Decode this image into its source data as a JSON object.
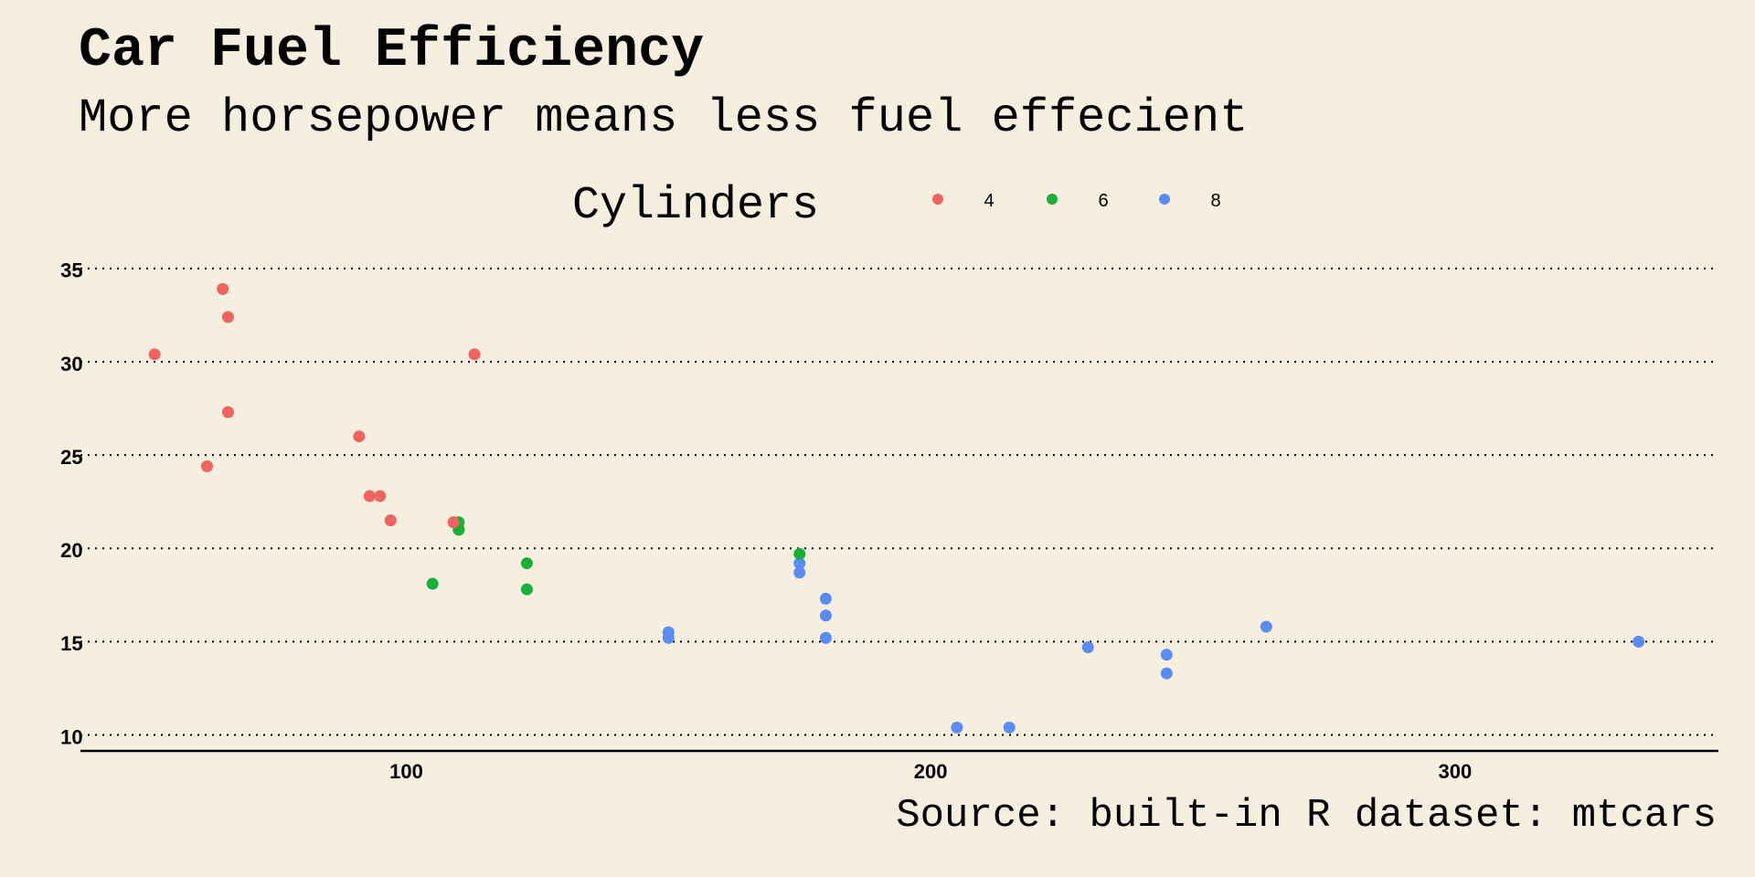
{
  "chart_data": {
    "type": "scatter",
    "title": "Car Fuel Efficiency",
    "subtitle": "More horsepower means less fuel effecient",
    "caption": "Source: built-in R dataset: mtcars",
    "xlabel": "",
    "ylabel": "",
    "xlim": [
      40,
      345
    ],
    "ylim": [
      9.5,
      35.5
    ],
    "x_ticks": [
      100,
      200,
      300
    ],
    "y_ticks": [
      10,
      15,
      20,
      25,
      30,
      35
    ],
    "grid": "horizontal dotted",
    "legend": {
      "title": "Cylinders",
      "placement": "top",
      "entries": [
        "4",
        "6",
        "8"
      ]
    },
    "colors": {
      "4": "#f0635f",
      "6": "#19b03a",
      "8": "#5a8cf5"
    },
    "points": [
      {
        "x": 110,
        "y": 21.0,
        "cyl": "6"
      },
      {
        "x": 110,
        "y": 21.0,
        "cyl": "6"
      },
      {
        "x": 93,
        "y": 22.8,
        "cyl": "4"
      },
      {
        "x": 110,
        "y": 21.4,
        "cyl": "6"
      },
      {
        "x": 175,
        "y": 18.7,
        "cyl": "8"
      },
      {
        "x": 105,
        "y": 18.1,
        "cyl": "6"
      },
      {
        "x": 245,
        "y": 14.3,
        "cyl": "8"
      },
      {
        "x": 62,
        "y": 24.4,
        "cyl": "4"
      },
      {
        "x": 95,
        "y": 22.8,
        "cyl": "4"
      },
      {
        "x": 123,
        "y": 19.2,
        "cyl": "6"
      },
      {
        "x": 123,
        "y": 17.8,
        "cyl": "6"
      },
      {
        "x": 180,
        "y": 16.4,
        "cyl": "8"
      },
      {
        "x": 180,
        "y": 17.3,
        "cyl": "8"
      },
      {
        "x": 180,
        "y": 15.2,
        "cyl": "8"
      },
      {
        "x": 205,
        "y": 10.4,
        "cyl": "8"
      },
      {
        "x": 215,
        "y": 10.4,
        "cyl": "8"
      },
      {
        "x": 230,
        "y": 14.7,
        "cyl": "8"
      },
      {
        "x": 66,
        "y": 32.4,
        "cyl": "4"
      },
      {
        "x": 52,
        "y": 30.4,
        "cyl": "4"
      },
      {
        "x": 65,
        "y": 33.9,
        "cyl": "4"
      },
      {
        "x": 97,
        "y": 21.5,
        "cyl": "4"
      },
      {
        "x": 150,
        "y": 15.5,
        "cyl": "8"
      },
      {
        "x": 150,
        "y": 15.2,
        "cyl": "8"
      },
      {
        "x": 245,
        "y": 13.3,
        "cyl": "8"
      },
      {
        "x": 175,
        "y": 19.2,
        "cyl": "8"
      },
      {
        "x": 66,
        "y": 27.3,
        "cyl": "4"
      },
      {
        "x": 91,
        "y": 26.0,
        "cyl": "4"
      },
      {
        "x": 113,
        "y": 30.4,
        "cyl": "4"
      },
      {
        "x": 264,
        "y": 15.8,
        "cyl": "8"
      },
      {
        "x": 175,
        "y": 19.7,
        "cyl": "6"
      },
      {
        "x": 335,
        "y": 15.0,
        "cyl": "8"
      },
      {
        "x": 109,
        "y": 21.4,
        "cyl": "4"
      }
    ]
  }
}
